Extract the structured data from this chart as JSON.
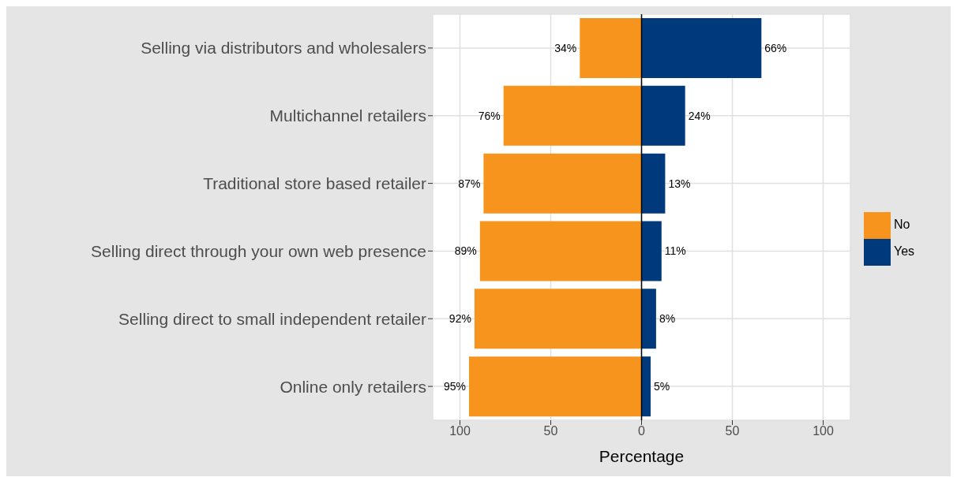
{
  "chart_data": {
    "type": "bar",
    "orientation": "horizontal",
    "xlabel": "Percentage",
    "categories": [
      "Selling via distributors and wholesalers",
      "Multichannel retailers",
      "Traditional store based retailer",
      "Selling direct through your own web presence",
      "Selling direct to small independent retailer",
      "Online only retailers"
    ],
    "series": [
      {
        "name": "No",
        "color": "#f7941d",
        "base": [
          -34,
          -76,
          -87,
          -89,
          -92,
          -95
        ],
        "values": [
          34,
          76,
          87,
          89,
          92,
          95
        ],
        "value_labels": [
          "34%",
          "76%",
          "87%",
          "89%",
          "92%",
          "95%"
        ]
      },
      {
        "name": "Yes",
        "color": "#003a7d",
        "values": [
          66,
          24,
          13,
          11,
          8,
          5
        ],
        "value_labels": [
          "66%",
          "24%",
          "13%",
          "11%",
          "8%",
          "5%"
        ]
      }
    ],
    "xlim": [
      -115,
      115
    ],
    "xticks": [
      {
        "value": -100,
        "label": "100"
      },
      {
        "value": -50,
        "label": "50"
      },
      0,
      50,
      100
    ],
    "ref_lines": [
      {
        "axis": "x",
        "value": 0,
        "color": "#000000"
      }
    ],
    "grid": true,
    "legend": "right"
  }
}
